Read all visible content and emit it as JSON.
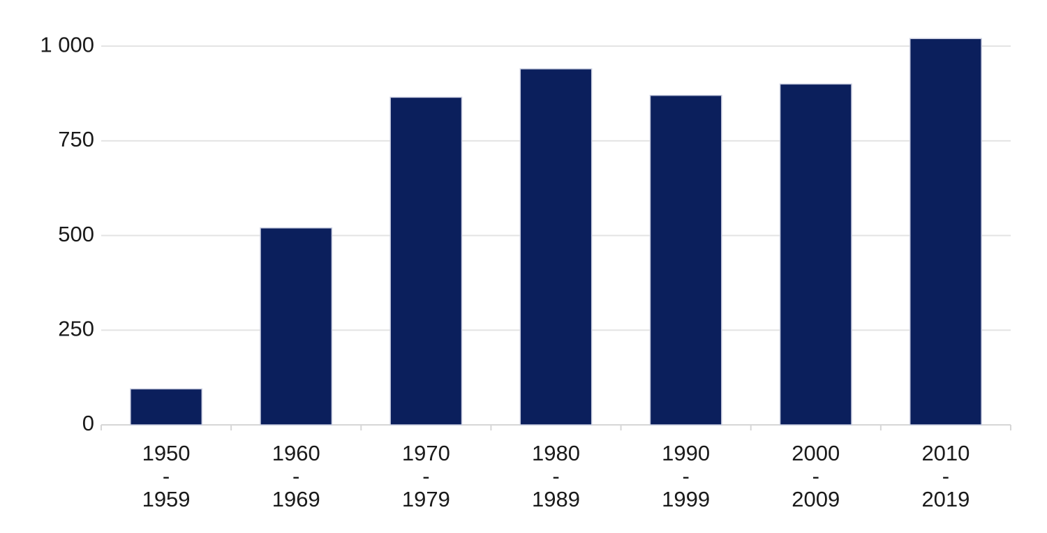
{
  "chart_data": {
    "type": "bar",
    "categories": [
      "1950\n-\n1959",
      "1960\n-\n1969",
      "1970\n-\n1979",
      "1980\n-\n1989",
      "1990\n-\n1999",
      "2000\n-\n2009",
      "2010\n-\n2019"
    ],
    "values": [
      95,
      520,
      865,
      940,
      870,
      900,
      1020
    ],
    "color": "#0b1f5c",
    "ylim": [
      0,
      1050
    ],
    "yticks": [
      0,
      250,
      500,
      750,
      {
        "value": 1000,
        "label": "1 000"
      }
    ],
    "grid": true
  }
}
